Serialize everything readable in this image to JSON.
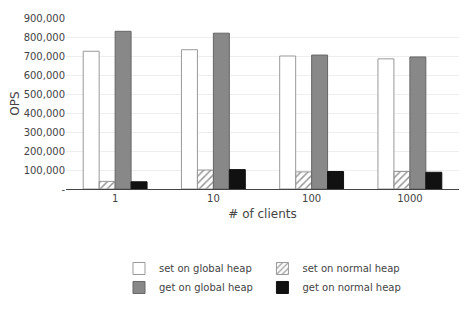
{
  "chart_data": {
    "type": "bar",
    "categories": [
      "1",
      "10",
      "100",
      "1000"
    ],
    "series": [
      {
        "name": "set on global heap",
        "color": "#ffffff",
        "values": [
          725000,
          733000,
          700000,
          685000
        ]
      },
      {
        "name": "set on normal heap",
        "color": "#ffffff",
        "values": [
          40000,
          100000,
          90000,
          92000
        ]
      },
      {
        "name": "get on global heap",
        "color": "#888888",
        "values": [
          830000,
          820000,
          705000,
          695000
        ]
      },
      {
        "name": "get on normal heap",
        "color": "#111111",
        "values": [
          38000,
          102000,
          92000,
          88000
        ]
      }
    ],
    "xlabel": "# of clients",
    "ylabel": "OPS",
    "ylim": [
      0,
      900000
    ],
    "yticks": [
      {
        "value": 0,
        "label": "-"
      },
      {
        "value": 100000,
        "label": "100,000"
      },
      {
        "value": 200000,
        "label": "200,000"
      },
      {
        "value": 300000,
        "label": "300,000"
      },
      {
        "value": 400000,
        "label": "400,000"
      },
      {
        "value": 500000,
        "label": "500,000"
      },
      {
        "value": 600000,
        "label": "600,000"
      },
      {
        "value": 700000,
        "label": "700,000"
      },
      {
        "value": 800000,
        "label": "800,000"
      },
      {
        "value": 900000,
        "label": "900,000"
      }
    ],
    "grid": true,
    "legend": "bottom"
  }
}
